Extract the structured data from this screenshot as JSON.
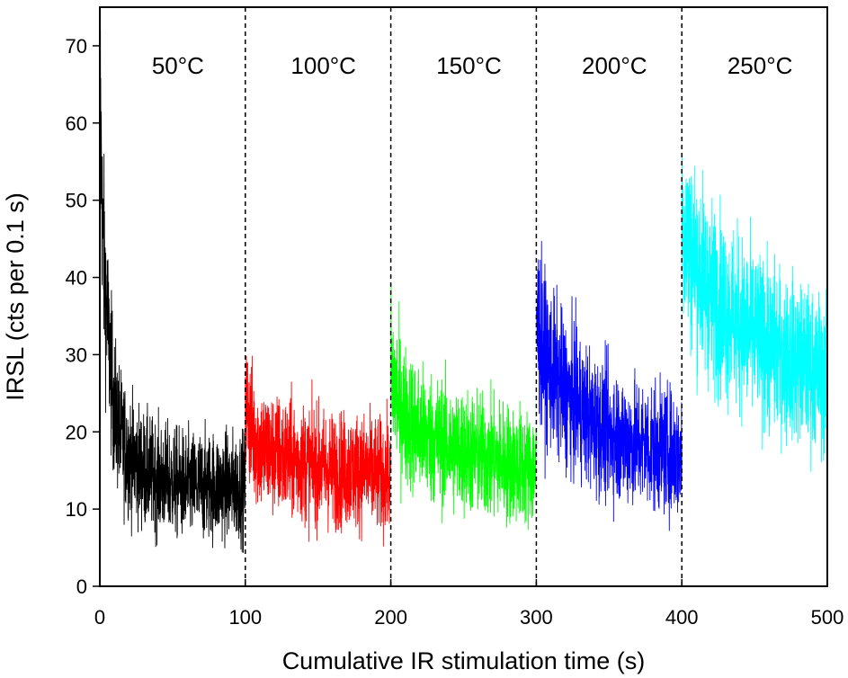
{
  "chart_data": {
    "type": "line",
    "title": "",
    "xlabel": "Cumulative IR stimulation time (s)",
    "ylabel": "IRSL  (cts per 0.1 s)",
    "xlim": [
      0,
      500
    ],
    "ylim": [
      0,
      75
    ],
    "xticks": [
      0,
      100,
      200,
      300,
      400,
      500
    ],
    "yticks": [
      0,
      10,
      20,
      30,
      40,
      50,
      60,
      70
    ],
    "xtick_labels": [
      "0",
      "100",
      "200",
      "300",
      "400",
      "500"
    ],
    "ytick_labels": [
      "0",
      "10",
      "20",
      "30",
      "40",
      "50",
      "60",
      "70"
    ],
    "grid": false,
    "separators": [
      100,
      200,
      300,
      400
    ],
    "series": [
      {
        "label": "50°C",
        "color": "#000000",
        "x_range": [
          0,
          100
        ],
        "points": [
          [
            0,
            68
          ],
          [
            1,
            55
          ],
          [
            2,
            45
          ],
          [
            4,
            38
          ],
          [
            6,
            32
          ],
          [
            8,
            27
          ],
          [
            10,
            23
          ],
          [
            15,
            19
          ],
          [
            20,
            17
          ],
          [
            30,
            15
          ],
          [
            40,
            14
          ],
          [
            50,
            13.5
          ],
          [
            60,
            13
          ],
          [
            80,
            13
          ],
          [
            100,
            13
          ]
        ]
      },
      {
        "label": "100°C",
        "color": "#ff0000",
        "x_range": [
          100,
          200
        ],
        "points": [
          [
            100,
            24
          ],
          [
            105,
            20
          ],
          [
            110,
            18
          ],
          [
            120,
            17
          ],
          [
            140,
            16
          ],
          [
            160,
            15
          ],
          [
            180,
            15
          ],
          [
            200,
            14
          ]
        ]
      },
      {
        "label": "150°C",
        "color": "#00ff00",
        "x_range": [
          200,
          300
        ],
        "points": [
          [
            200,
            28
          ],
          [
            205,
            24
          ],
          [
            210,
            22
          ],
          [
            220,
            20
          ],
          [
            240,
            18
          ],
          [
            260,
            17
          ],
          [
            280,
            16
          ],
          [
            300,
            15
          ]
        ]
      },
      {
        "label": "200°C",
        "color": "#0000ff",
        "x_range": [
          300,
          400
        ],
        "points": [
          [
            300,
            35
          ],
          [
            305,
            30
          ],
          [
            310,
            28
          ],
          [
            320,
            25
          ],
          [
            340,
            21
          ],
          [
            360,
            19
          ],
          [
            380,
            18
          ],
          [
            400,
            17
          ]
        ]
      },
      {
        "label": "250°C",
        "color": "#00ffff",
        "x_range": [
          400,
          500
        ],
        "points": [
          [
            400,
            48
          ],
          [
            405,
            44
          ],
          [
            410,
            42
          ],
          [
            420,
            38
          ],
          [
            440,
            34
          ],
          [
            460,
            31
          ],
          [
            480,
            29
          ],
          [
            500,
            27
          ]
        ]
      }
    ]
  }
}
